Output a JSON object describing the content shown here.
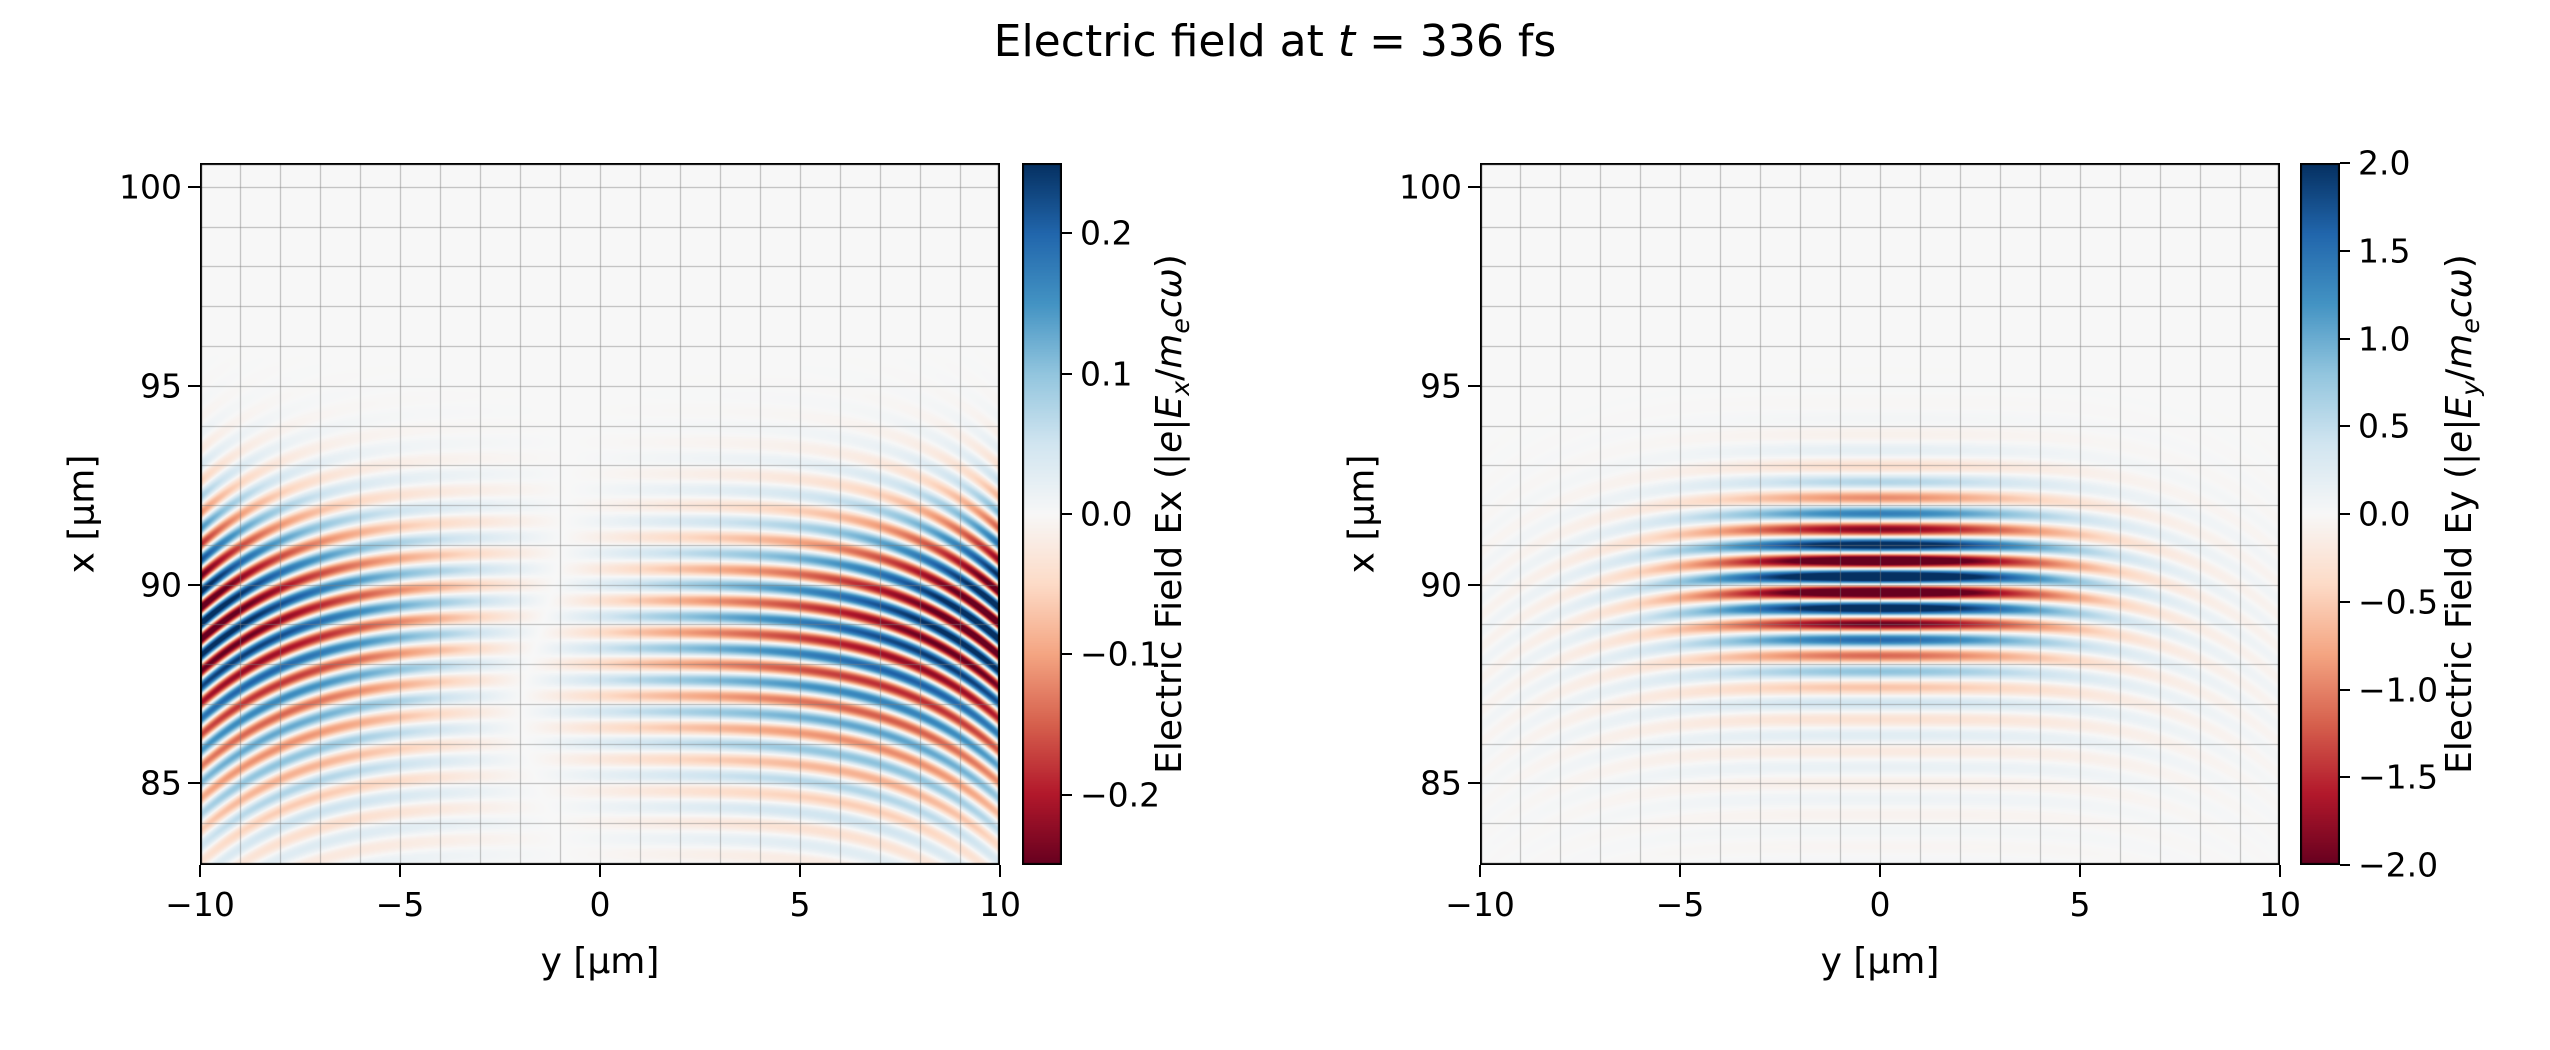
{
  "figure": {
    "title_parts": [
      {
        "text": "Electric field at ",
        "italic": false
      },
      {
        "text": "t",
        "italic": true
      },
      {
        "text": " = 336 fs",
        "italic": false
      }
    ],
    "time_fs": 336,
    "background": "#ffffff"
  },
  "colormap": {
    "name": "RdBu",
    "stops": [
      "#67001f",
      "#b2182b",
      "#d6604d",
      "#f4a582",
      "#fddbc7",
      "#f7f7f7",
      "#d1e5f0",
      "#92c5de",
      "#4393c3",
      "#2166ac",
      "#053061"
    ]
  },
  "grid": {
    "on": true,
    "spacing_um": 1,
    "color": "rgba(125,125,125,0.55)"
  },
  "chart_data": [
    {
      "type": "heatmap",
      "component": "Ex",
      "xlabel": "y [μm]",
      "ylabel": "x [μm]",
      "xlim": [
        -10,
        10
      ],
      "ylim": [
        82.95,
        100.6
      ],
      "xticks": {
        "values": [
          -10,
          -5,
          0,
          5,
          10
        ],
        "labels": [
          "−10",
          "−5",
          "0",
          "5",
          "10"
        ]
      },
      "yticks": {
        "values": [
          85,
          90,
          95,
          100
        ],
        "labels": [
          "85",
          "90",
          "95",
          "100"
        ]
      },
      "colorbar": {
        "clim": [
          -0.25,
          0.25
        ],
        "tick_values": [
          0.2,
          0.1,
          0.0,
          -0.1,
          -0.2
        ],
        "tick_labels": [
          "0.2",
          "0.1",
          "0.0",
          "−0.1",
          "−0.2"
        ],
        "label_parts": [
          {
            "text": "Electric Field Ex (|"
          },
          {
            "text": "e",
            "italic": true
          },
          {
            "text": "|"
          },
          {
            "text": "E",
            "italic": true
          },
          {
            "text": "x",
            "italic": true,
            "sub": true
          },
          {
            "text": "/"
          },
          {
            "text": "m",
            "italic": true
          },
          {
            "text": "e",
            "italic": true,
            "sub": true
          },
          {
            "text": "c",
            "italic": true
          },
          {
            "text": "ω",
            "italic": true
          },
          {
            "text": ")"
          }
        ]
      },
      "field_model": {
        "wavelength_um": 0.8,
        "phase_ref_x": 90.0,
        "phase_offset_deg": 90,
        "edge_droop_um": 2.2,
        "terms": [
          {
            "amp": 0.27,
            "x_center": 89.4,
            "x_sigma": 2.6,
            "y_profile": "linear"
          },
          {
            "amp": 0.11,
            "x_center": 86.0,
            "x_sigma": 2.8,
            "y_profile": "linear"
          },
          {
            "amp": 0.05,
            "x_center": 88.0,
            "x_sigma": 3.0,
            "y_profile": "gauss",
            "y_sigma": 7.0
          }
        ]
      }
    },
    {
      "type": "heatmap",
      "component": "Ey",
      "xlabel": "y [μm]",
      "ylabel": "x [μm]",
      "xlim": [
        -10,
        10
      ],
      "ylim": [
        82.95,
        100.6
      ],
      "xticks": {
        "values": [
          -10,
          -5,
          0,
          5,
          10
        ],
        "labels": [
          "−10",
          "−5",
          "0",
          "5",
          "10"
        ]
      },
      "yticks": {
        "values": [
          85,
          90,
          95,
          100
        ],
        "labels": [
          "85",
          "90",
          "95",
          "100"
        ]
      },
      "colorbar": {
        "clim": [
          -2.0,
          2.0
        ],
        "tick_values": [
          2.0,
          1.5,
          1.0,
          0.5,
          0.0,
          -0.5,
          -1.0,
          -1.5,
          -2.0
        ],
        "tick_labels": [
          "2.0",
          "1.5",
          "1.0",
          "0.5",
          "0.0",
          "−0.5",
          "−1.0",
          "−1.5",
          "−2.0"
        ],
        "label_parts": [
          {
            "text": "Electric Field Ey (|"
          },
          {
            "text": "e",
            "italic": true
          },
          {
            "text": "|"
          },
          {
            "text": "E",
            "italic": true
          },
          {
            "text": "y",
            "italic": true,
            "sub": true
          },
          {
            "text": "/"
          },
          {
            "text": "m",
            "italic": true
          },
          {
            "text": "e",
            "italic": true,
            "sub": true
          },
          {
            "text": "c",
            "italic": true
          },
          {
            "text": "ω",
            "italic": true
          },
          {
            "text": ")"
          }
        ]
      },
      "field_model": {
        "wavelength_um": 0.8,
        "phase_ref_x": 90.0,
        "phase_offset_deg": 0,
        "edge_droop_um": 2.2,
        "terms": [
          {
            "amp": 2.6,
            "x_center": 90.2,
            "x_sigma": 1.9,
            "y_profile": "gauss",
            "y_sigma": 4.2
          },
          {
            "amp": 0.28,
            "x_center": 88.2,
            "x_sigma": 3.4,
            "y_profile": "gauss",
            "y_sigma": 8.5
          }
        ]
      }
    }
  ]
}
